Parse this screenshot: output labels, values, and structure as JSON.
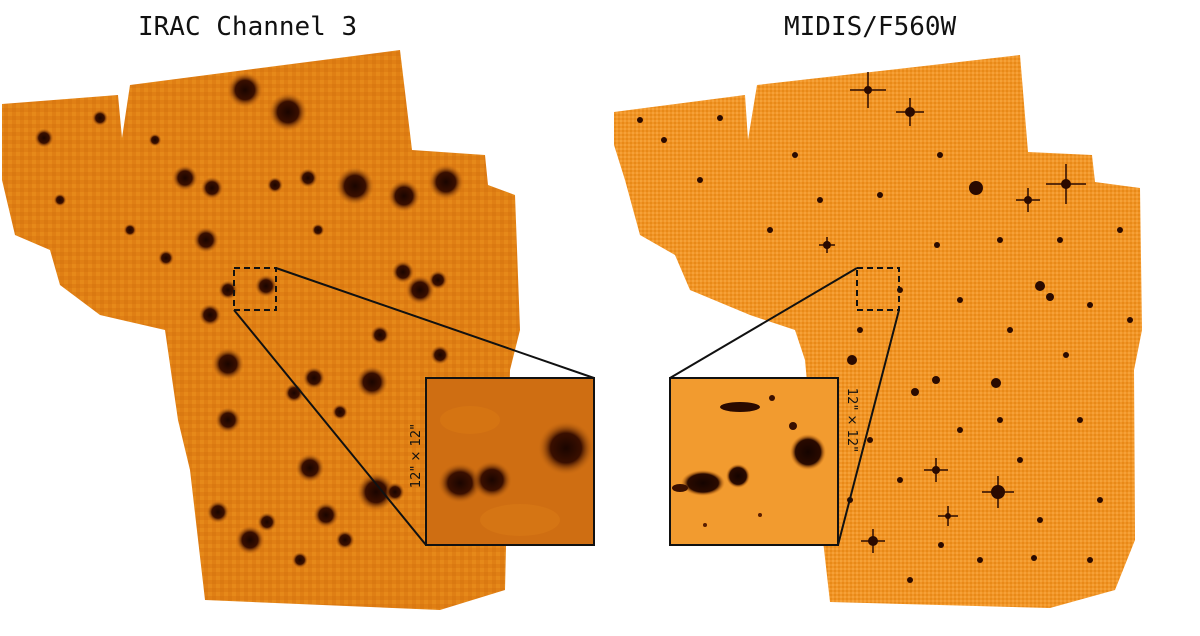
{
  "panels": [
    {
      "title": "IRAC Channel 3",
      "inset_scale": "12\" × 12\""
    },
    {
      "title": "MIDIS/F560W",
      "inset_scale": "12\" × 12\""
    }
  ],
  "colors": {
    "background": "#e8860f",
    "background_light": "#f2a23a",
    "source": "#2a0a00",
    "outline": "#111111"
  }
}
